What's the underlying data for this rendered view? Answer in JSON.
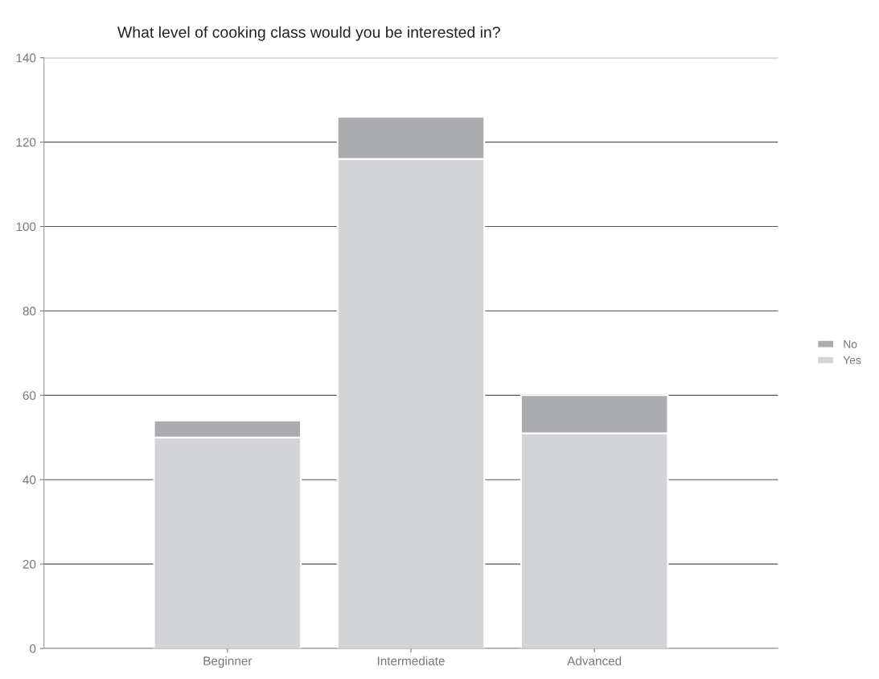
{
  "chart_data": {
    "type": "bar",
    "title": "What level of cooking class would you be interested in?",
    "categories": [
      "Beginner",
      "Intermediate",
      "Advanced"
    ],
    "stacked": true,
    "series": [
      {
        "name": "Yes",
        "color": "#d3d4d7",
        "values": [
          50,
          116,
          51
        ]
      },
      {
        "name": "No",
        "color": "#aaabae",
        "values": [
          4,
          10,
          9
        ]
      }
    ],
    "ylim": [
      0,
      140
    ],
    "yticks": [
      0,
      20,
      40,
      60,
      80,
      100,
      120,
      140
    ],
    "grid": "y",
    "legend": "right"
  }
}
